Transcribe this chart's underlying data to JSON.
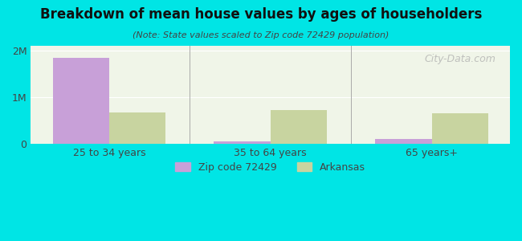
{
  "title": "Breakdown of mean house values by ages of householders",
  "subtitle": "(Note: State values scaled to Zip code 72429 population)",
  "categories": [
    "25 to 34 years",
    "35 to 64 years",
    "65 years+"
  ],
  "zip_values": [
    1850000,
    60000,
    110000
  ],
  "state_values": [
    680000,
    720000,
    660000
  ],
  "zip_color": "#c8a0d8",
  "state_color": "#c8d4a0",
  "background_color": "#00e5e5",
  "plot_bg_color": "#f0f5e8",
  "ylim": [
    0,
    2100000
  ],
  "yticks": [
    0,
    1000000,
    2000000
  ],
  "ytick_labels": [
    "0",
    "1M",
    "2M"
  ],
  "bar_width": 0.35,
  "legend_zip_label": "Zip code 72429",
  "legend_state_label": "Arkansas",
  "watermark": "City-Data.com"
}
